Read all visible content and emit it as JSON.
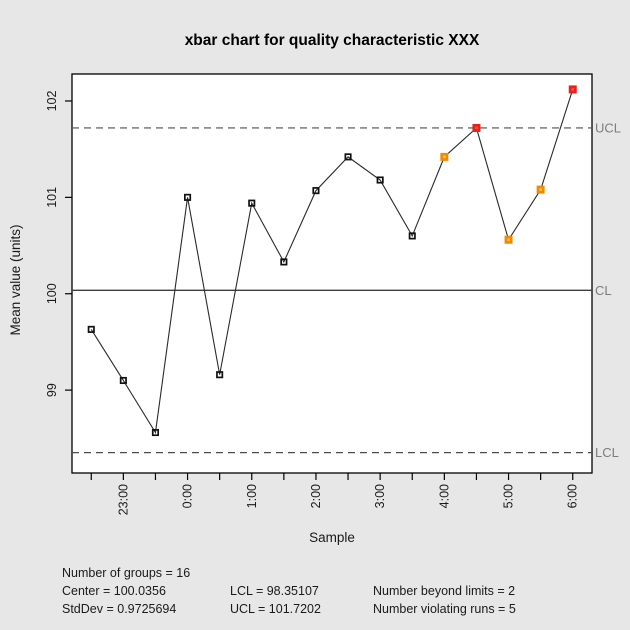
{
  "chart_data": {
    "type": "line",
    "title": "xbar chart for quality characteristic XXX",
    "xlabel": "Sample",
    "ylabel": "Mean value (units)",
    "x": [
      1,
      2,
      3,
      4,
      5,
      6,
      7,
      8,
      9,
      10,
      11,
      12,
      13,
      14,
      15,
      16
    ],
    "values": [
      99.63,
      99.1,
      98.56,
      101.0,
      99.16,
      100.94,
      100.33,
      101.07,
      101.42,
      101.18,
      100.6,
      101.42,
      101.72,
      100.56,
      101.08,
      102.12
    ],
    "point_states": [
      "normal",
      "normal",
      "normal",
      "normal",
      "normal",
      "normal",
      "normal",
      "normal",
      "normal",
      "normal",
      "normal",
      "run",
      "beyond",
      "run",
      "run",
      "beyond"
    ],
    "x_tick_label_positions": [
      2,
      4,
      6,
      8,
      10,
      12,
      14,
      16
    ],
    "x_tick_labels": [
      "23:00",
      "0:00",
      "1:00",
      "2:00",
      "3:00",
      "4:00",
      "5:00",
      "6:00"
    ],
    "y_ticks": [
      99,
      100,
      101,
      102
    ],
    "ylim": [
      98.14,
      102.28
    ],
    "xlim": [
      0.4,
      16.6
    ],
    "center": 100.0356,
    "ucl": 101.7202,
    "lcl": 98.35107,
    "line_labels": {
      "ucl": "UCL",
      "cl": "CL",
      "lcl": "LCL"
    },
    "grid": false,
    "legend": "none"
  },
  "stats": {
    "groups": "Number of groups = 16",
    "center": "Center = 100.0356",
    "stddev": "StdDev = 0.9725694",
    "lcl": "LCL = 98.35107",
    "ucl": "UCL = 101.7202",
    "beyond": "Number beyond limits = 2",
    "violating": "Number violating runs = 5"
  },
  "colors": {
    "background": "#e7e7e7",
    "plot_background": "#ffffff",
    "series_line": "#2a2a2a",
    "point_normal": "#111111",
    "point_run": "#f08a00",
    "point_run_center": "#fec44f",
    "point_beyond": "#e8201e",
    "point_beyond_center": "#fb4f3f",
    "control_lines": "#4d4d4d",
    "limit_label": "#7d7d7d"
  }
}
